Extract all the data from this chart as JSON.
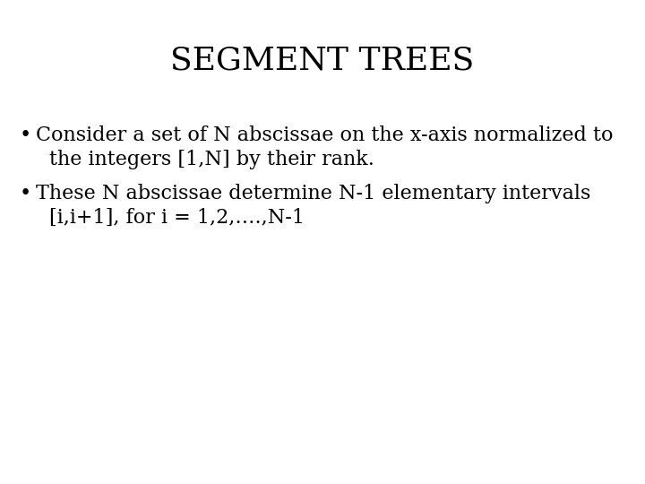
{
  "title": "SEGMENT TREES",
  "title_fontsize": 26,
  "title_font": "serif",
  "background_color": "#ffffff",
  "text_color": "#000000",
  "bullet1_line1": "Consider a set of N abscissae on the x-axis normalized to",
  "bullet1_line2": "the integers [1,N] by their rank.",
  "bullet2_line1": "These N abscissae determine N-1 elementary intervals",
  "bullet2_line2": "[i,i+1], for i = 1,2,….,N-1",
  "body_fontsize": 16,
  "body_font": "serif",
  "bullet_fontsize": 16
}
